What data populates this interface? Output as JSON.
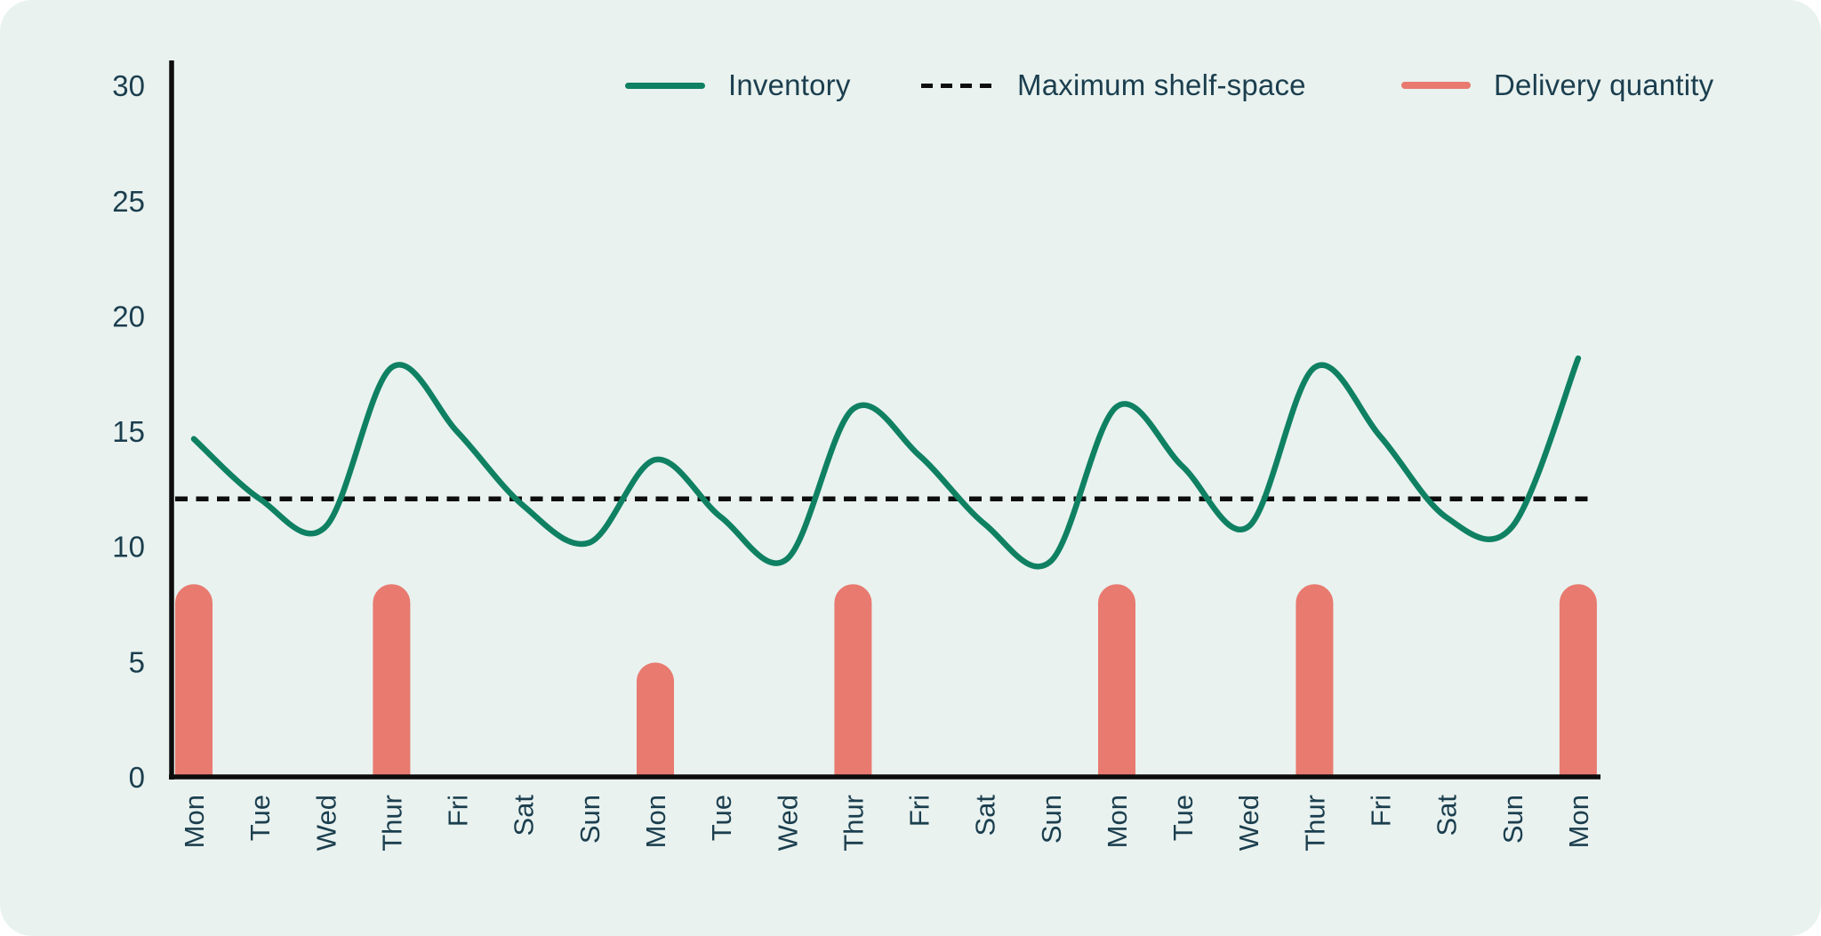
{
  "card": {
    "background": "#E9F2EF"
  },
  "legend": {
    "items": [
      {
        "id": "inventory",
        "label": "Inventory",
        "swatch": "solid-line",
        "color": "#0F8162"
      },
      {
        "id": "max-shelf-space",
        "label": "Maximum shelf-space",
        "swatch": "dashed-line",
        "color": "#0D0D0D"
      },
      {
        "id": "delivery-quantity",
        "label": "Delivery quantity",
        "swatch": "solid-line",
        "color": "#E87A70"
      }
    ]
  },
  "chart_data": {
    "type": "line+bar",
    "title": "",
    "xlabel": "",
    "ylabel": "",
    "categories": [
      "Mon",
      "Tue",
      "Wed",
      "Thur",
      "Fri",
      "Sat",
      "Sun",
      "Mon",
      "Tue",
      "Wed",
      "Thur",
      "Fri",
      "Sat",
      "Sun",
      "Mon",
      "Tue",
      "Wed",
      "Thur",
      "Fri",
      "Sat",
      "Sun",
      "Mon"
    ],
    "yticks": [
      0,
      5,
      10,
      15,
      20,
      25,
      30
    ],
    "ylim": [
      0,
      30
    ],
    "grid": false,
    "legend_position": "top",
    "axis_color": "#0D0D0D",
    "tick_color": "#1B3E4E",
    "series": [
      {
        "name": "Inventory",
        "type": "line",
        "color": "#0F8162",
        "values": [
          14.7,
          12.1,
          10.9,
          17.8,
          15.0,
          11.8,
          10.2,
          13.8,
          11.3,
          9.5,
          16.0,
          14.0,
          11.0,
          9.4,
          16.1,
          13.5,
          10.9,
          17.8,
          14.8,
          11.3,
          10.9,
          18.2
        ]
      },
      {
        "name": "Maximum shelf-space",
        "type": "reference-line",
        "color": "#0D0D0D",
        "value": 12.1
      },
      {
        "name": "Delivery quantity",
        "type": "bar",
        "color": "#E87A70",
        "values": [
          8.4,
          null,
          null,
          8.4,
          null,
          null,
          null,
          5,
          null,
          null,
          8.4,
          null,
          null,
          null,
          8.4,
          null,
          null,
          8.4,
          null,
          null,
          null,
          8.4
        ]
      }
    ]
  }
}
